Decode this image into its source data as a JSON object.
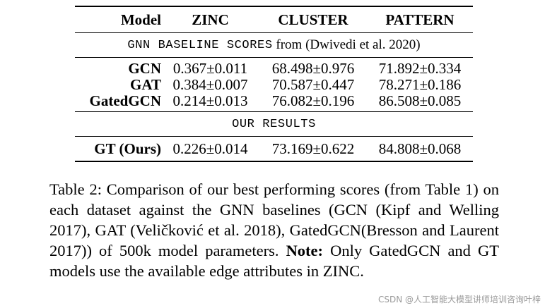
{
  "table": {
    "headers": [
      "Model",
      "ZINC",
      "CLUSTER",
      "PATTERN"
    ],
    "section1": {
      "mono": "GNN BASELINE SCORES",
      "rest": " from (Dwivedi et al. 2020)"
    },
    "baselines": [
      {
        "model": "GCN",
        "zinc": "0.367±0.011",
        "cluster": "68.498±0.976",
        "pattern": "71.892±0.334"
      },
      {
        "model": "GAT",
        "zinc": "0.384±0.007",
        "cluster": "70.587±0.447",
        "pattern": "78.271±0.186"
      },
      {
        "model": "GatedGCN",
        "zinc": "0.214±0.013",
        "cluster": "76.082±0.196",
        "pattern": "86.508±0.085"
      }
    ],
    "section2": "OUR RESULTS",
    "ours": {
      "model": "GT (Ours)",
      "zinc": "0.226±0.014",
      "cluster": "73.169±0.622",
      "pattern": "84.808±0.068"
    }
  },
  "caption": {
    "part1": "Table 2: Comparison of our best performing scores (from Table 1) on each dataset against the GNN baselines (GCN (Kipf and Welling 2017), GAT (Veličković et al. 2018), GatedGCN(Bresson and Laurent 2017)) of 500k model parameters. ",
    "note_label": "Note:",
    "part2": " Only GatedGCN and GT models use the available edge attributes in ZINC."
  },
  "watermark": "CSDN @人工智能大模型讲师培训咨询叶梓"
}
